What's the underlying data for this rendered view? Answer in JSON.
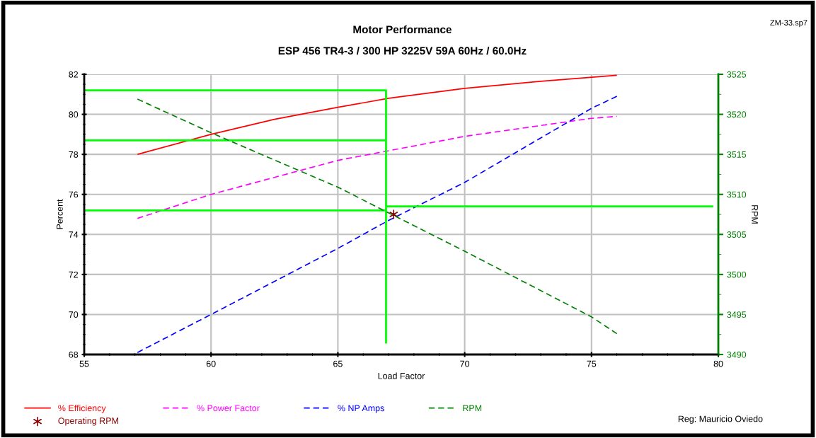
{
  "chart_data": {
    "type": "line",
    "title": "Motor Performance",
    "subtitle": "ESP 456 TR4-3 / 300 HP 3225V 59A 60Hz / 60.0Hz",
    "xlabel": "Load Factor",
    "ylabel": "Percent",
    "y2label": "RPM",
    "xlim": [
      55,
      80
    ],
    "xticks": [
      55,
      60,
      65,
      70,
      75,
      80
    ],
    "ylim": [
      68,
      82
    ],
    "yticks": [
      68,
      70,
      72,
      74,
      76,
      78,
      80,
      82
    ],
    "y2lim": [
      3490,
      3525
    ],
    "y2ticks": [
      3490,
      3495,
      3500,
      3505,
      3510,
      3515,
      3520,
      3525
    ],
    "grid": true,
    "legend": "bottom",
    "marker": "none",
    "series": [
      {
        "name": "% Efficiency",
        "color": "#ff0000",
        "line_style": "solid",
        "x": [
          57.1,
          60,
          62.5,
          65,
          67,
          70,
          73,
          76
        ],
        "values": [
          78.0,
          79.0,
          79.75,
          80.35,
          80.8,
          81.3,
          81.65,
          81.95
        ]
      },
      {
        "name": "% Power Factor",
        "color": "#ff00ff",
        "line_style": "dashed",
        "x": [
          57.1,
          60,
          65,
          70,
          75,
          76
        ],
        "values": [
          74.8,
          76.0,
          77.7,
          78.9,
          79.8,
          79.9
        ]
      },
      {
        "name": "% NP Amps",
        "color": "#0000ff",
        "line_style": "dashed",
        "x": [
          57.1,
          60,
          65,
          67,
          70,
          75,
          76
        ],
        "values": [
          68.1,
          70.0,
          73.3,
          74.7,
          76.6,
          80.3,
          80.9
        ]
      },
      {
        "name": "RPM",
        "color": "#008000",
        "line_style": "dashed",
        "axis": "y2",
        "x": [
          57.1,
          60,
          65,
          70,
          75,
          76
        ],
        "values": [
          3521.9,
          3517.7,
          3510.9,
          3502.9,
          3494.7,
          3492.6
        ]
      },
      {
        "name": "Operating RPM",
        "type": "scatter",
        "marker": "cross",
        "color": "#8b0000",
        "x": [
          67.2
        ],
        "values": [
          75.0
        ]
      },
      {
        "color": "#00ff00",
        "line_style": "solid",
        "x": [
          55,
          66.9,
          66.9
        ],
        "values": [
          81.2,
          81.2,
          68.55
        ]
      },
      {
        "color": "#00ff00",
        "line_style": "solid",
        "x": [
          55,
          66.9
        ],
        "values": [
          78.7,
          78.7
        ]
      },
      {
        "color": "#00ff00",
        "line_style": "solid",
        "x": [
          55,
          66.9
        ],
        "values": [
          75.2,
          75.2
        ]
      },
      {
        "color": "#00ff00",
        "line_style": "solid",
        "axis": "y2",
        "x": [
          66.9,
          79.8
        ],
        "values": [
          3508.5,
          3508.5
        ]
      }
    ],
    "annotations": [
      "ZM-33.sp7",
      "Reg: Mauricio Oviedo"
    ]
  }
}
